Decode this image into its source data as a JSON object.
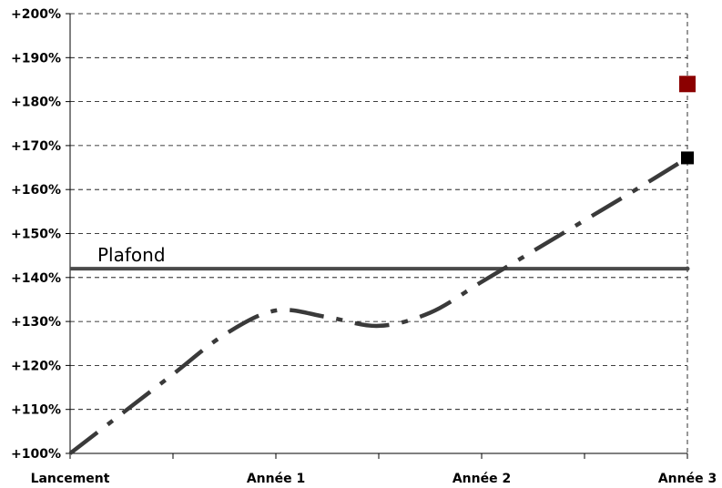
{
  "chart_data": {
    "type": "line",
    "title": "",
    "xlabel": "",
    "ylabel": "",
    "categories": [
      "Lancement",
      "Année 1",
      "Année 2",
      "Année 3"
    ],
    "x_minor_ticks": [
      0.5,
      1.5,
      2.5
    ],
    "ylim": [
      100,
      200
    ],
    "y_ticks": [
      100,
      110,
      120,
      130,
      140,
      150,
      160,
      170,
      180,
      190,
      200
    ],
    "y_tick_format": "+{v}%",
    "grid": true,
    "grid_style": "dashed",
    "series": [
      {
        "style": "dash-dot",
        "color": "#3a3a3a",
        "x": [
          0,
          0.25,
          0.5,
          0.75,
          1.0,
          1.25,
          1.5,
          1.75,
          2.0,
          2.25,
          2.5,
          2.75,
          3.0
        ],
        "y": [
          100,
          109,
          118,
          127,
          132.5,
          131,
          129,
          132,
          139,
          146,
          153,
          160,
          167.2
        ],
        "end_marker": {
          "x": 3.0,
          "y": 167.2,
          "shape": "square",
          "color": "#000000"
        }
      }
    ],
    "reference_lines": [
      {
        "label": "Plafond",
        "y": 142,
        "color": "#4a4a4a"
      }
    ],
    "markers": [
      {
        "x": 3.0,
        "y": 184,
        "shape": "square",
        "color": "#8b0000"
      }
    ]
  }
}
